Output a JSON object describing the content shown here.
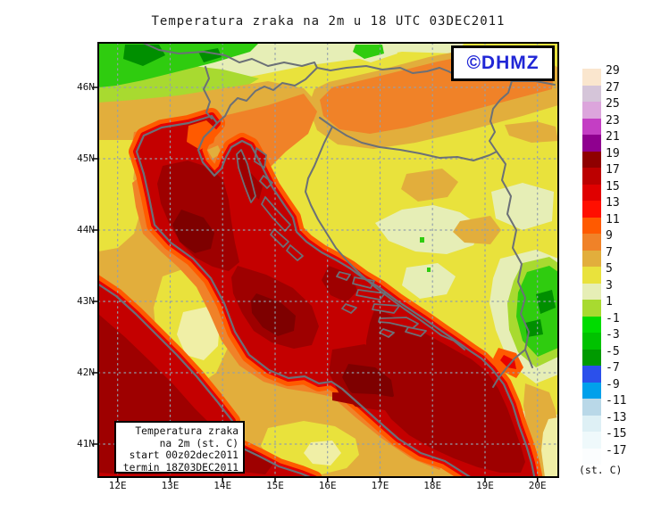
{
  "title": "Temperatura zraka na 2m u 18 UTC 03DEC2011",
  "logo": {
    "text": "©DHMZ",
    "color": "#2026d6"
  },
  "legend_box": {
    "lines": [
      "Temperatura zraka",
      "na 2m (st. C)",
      "start 00z02dec2011",
      "termin 18Z03DEC2011"
    ]
  },
  "axes": {
    "lat_labels": [
      "46N",
      "45N",
      "44N",
      "43N",
      "42N",
      "41N"
    ],
    "lon_labels": [
      "12E",
      "13E",
      "14E",
      "15E",
      "16E",
      "17E",
      "18E",
      "19E",
      "20E"
    ]
  },
  "colorbar": {
    "unit": "(st. C)",
    "entries": [
      {
        "label": "29",
        "color": "#fae6ce"
      },
      {
        "label": "27",
        "color": "#d5c5d9"
      },
      {
        "label": "25",
        "color": "#dca5dc"
      },
      {
        "label": "23",
        "color": "#c43ec4"
      },
      {
        "label": "21",
        "color": "#8f008f"
      },
      {
        "label": "19",
        "color": "#8f0000"
      },
      {
        "label": "17",
        "color": "#bc0000"
      },
      {
        "label": "15",
        "color": "#e00000"
      },
      {
        "label": "13",
        "color": "#ff0f00"
      },
      {
        "label": "11",
        "color": "#ff5a00"
      },
      {
        "label": "9",
        "color": "#f08228"
      },
      {
        "label": "7",
        "color": "#e2ae3c"
      },
      {
        "label": "5",
        "color": "#e9e23c"
      },
      {
        "label": "3",
        "color": "#e6eeb6"
      },
      {
        "label": "1",
        "color": "#a8da30"
      },
      {
        "label": "-1",
        "color": "#00dc00"
      },
      {
        "label": "-3",
        "color": "#00c200"
      },
      {
        "label": "-5",
        "color": "#009a00"
      },
      {
        "label": "-7",
        "color": "#2b50eb"
      },
      {
        "label": "-9",
        "color": "#00a0eb"
      },
      {
        "label": "-11",
        "color": "#b9d8e8"
      },
      {
        "label": "-13",
        "color": "#def0f5"
      },
      {
        "label": "-15",
        "color": "#eff9fb"
      },
      {
        "label": "-17",
        "color": "#fbfdfe"
      }
    ]
  },
  "palette": {
    "yellow": "#e9e23c",
    "pale_yellow": "#f0efa6",
    "pale_green": "#e6eeb6",
    "yellow_green": "#a8da30",
    "bright_green": "#2fcc0f",
    "dark_green": "#008f00",
    "amber": "#e2ae3c",
    "orange": "#f08228",
    "orange_red": "#ff5a00",
    "red": "#e60000",
    "sea_red": "#c40000",
    "dark_red": "#9e0000",
    "darkest_red": "#7e0000",
    "coast_gray": "#6b7077",
    "grid_gray": "#93a0ac",
    "frame_black": "#000000"
  }
}
